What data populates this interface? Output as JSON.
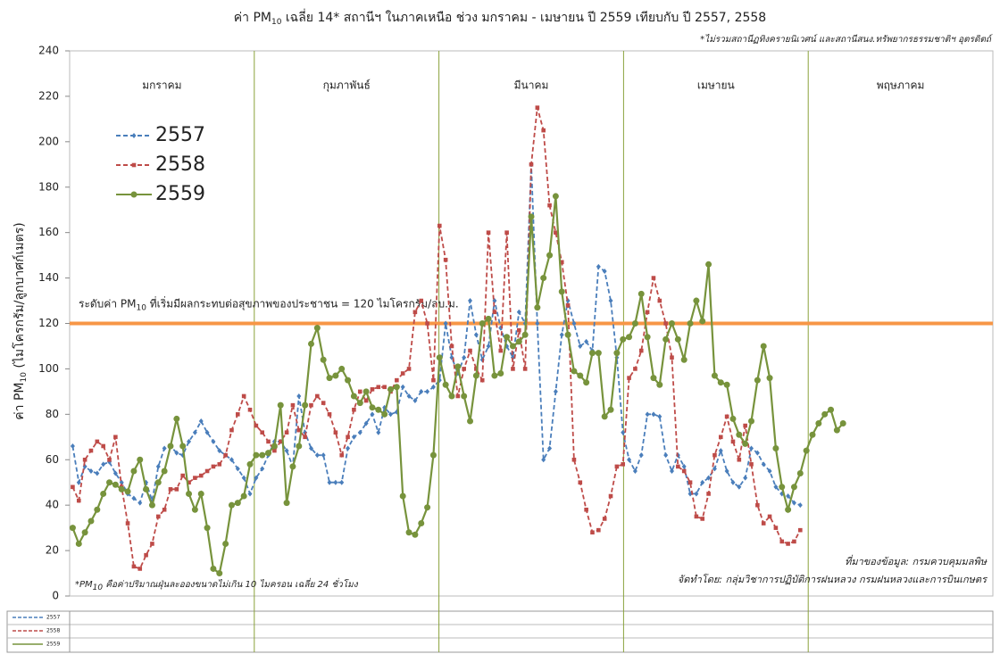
{
  "chart_data": {
    "type": "line",
    "title": {
      "pre": "ค่า PM",
      "sub": "10",
      "post": " เฉลี่ย 14* สถานีฯ ในภาคเหนือ ช่วง มกราคม - เมษายน ปี 2559 เทียบกับ ปี 2557, 2558"
    },
    "subtitle": "*ไม่รวมสถานีฏทิงครายนิเวศน์ และสถานีสนง.ทรัพยากรธรรมชาติฯ อุตรดิตถ์",
    "y_label": {
      "pre": "ค่า PM",
      "sub": "10",
      "post": " (ไมโครกรัม/ลูกบาศก์เมตร)"
    },
    "months": [
      "มกราคม",
      "กุมภาพันธ์",
      "มีนาคม",
      "เมษายน",
      "พฤษภาคม"
    ],
    "threshold": {
      "value": 120,
      "color": "#f79646",
      "pre": "ระดับค่า PM",
      "sub": "10",
      "post": " ที่เริ่มมีผลกระทบต่อสุขภาพของประชาชน = 120 ไมโครกรัม/ลบ.ม."
    },
    "footnote": {
      "pre": "*PM",
      "sub": "10",
      "post": " คือค่าปริมาณฝุ่นละอองขนาดไม่เกิน 10 ไมครอน เฉลี่ย 24 ชั่วโมง"
    },
    "source": "ที่มาของข้อมูล: กรมควบคุมมลพิษ",
    "credit": "จัดทำโดย: กลุ่มวิชาการปฏิบัติการฝนหลวง กรมฝนหลวงและการบินเกษตร",
    "ylim": [
      0,
      240
    ],
    "yticks": [
      0,
      20,
      40,
      60,
      80,
      100,
      120,
      140,
      160,
      180,
      200,
      220,
      240
    ],
    "categories": [
      null,
      null,
      null,
      null,
      null,
      null,
      null,
      null,
      null,
      null,
      null,
      null,
      null,
      null,
      null,
      null,
      null,
      null,
      null,
      null,
      null,
      null,
      null,
      null,
      null,
      null,
      null,
      null,
      null,
      null,
      null,
      null,
      null,
      null,
      null,
      null,
      null,
      null,
      null,
      null,
      null,
      null,
      null,
      null,
      null,
      null,
      null,
      null,
      null,
      null,
      null,
      null,
      null,
      null,
      null,
      null,
      null,
      null,
      null,
      null,
      null,
      null,
      null,
      null,
      null,
      null,
      null,
      null,
      null,
      null,
      null,
      null,
      null,
      null,
      null,
      null,
      null,
      null,
      null,
      null,
      null,
      null,
      null,
      null,
      null,
      null,
      null,
      null,
      null,
      null,
      null,
      null,
      null,
      null,
      null,
      null,
      null,
      null,
      null,
      null,
      null,
      null,
      null,
      null,
      null,
      null,
      null,
      null,
      null,
      null,
      null,
      null,
      null,
      null,
      null,
      null,
      null,
      null,
      null,
      null,
      null,
      null,
      null,
      null,
      null,
      null,
      null,
      null,
      null,
      null,
      null,
      null,
      null,
      null,
      null,
      null,
      null,
      null,
      null,
      null,
      null,
      null,
      null,
      null,
      null,
      null,
      null,
      null,
      null,
      null,
      null
    ],
    "series": [
      {
        "name": "2557",
        "color": "#4a7ebb",
        "dash": true,
        "marker": "diamond",
        "values": [
          66,
          50,
          57,
          55,
          54,
          58,
          59,
          54,
          50,
          45,
          43,
          41,
          50,
          42,
          57,
          65,
          66,
          63,
          62,
          68,
          72,
          77,
          72,
          68,
          64,
          62,
          60,
          56,
          52,
          45,
          52,
          56,
          62,
          68,
          68,
          64,
          57,
          88,
          72,
          65,
          62,
          62,
          50,
          50,
          50,
          65,
          70,
          72,
          76,
          80,
          72,
          83,
          80,
          81,
          92,
          88,
          86,
          90,
          90,
          92,
          95,
          120,
          105,
          98,
          105,
          130,
          115,
          104,
          110,
          130,
          118,
          110,
          105,
          125,
          120,
          190,
          120,
          60,
          65,
          90,
          115,
          130,
          120,
          110,
          112,
          108,
          145,
          143,
          130,
          105,
          72,
          60,
          55,
          62,
          80,
          80,
          79,
          62,
          55,
          62,
          57,
          45,
          45,
          50,
          52,
          56,
          64,
          55,
          50,
          48,
          52,
          65,
          63,
          58,
          55,
          48,
          45,
          44,
          41,
          40,
          null,
          null,
          null,
          null,
          null,
          null,
          null,
          null,
          null,
          null,
          null,
          null,
          null,
          null,
          null,
          null,
          null,
          null,
          null,
          null,
          null,
          null,
          null,
          null,
          null,
          null,
          null,
          null,
          null,
          null,
          null
        ]
      },
      {
        "name": "2558",
        "color": "#be4b48",
        "dash": true,
        "marker": "square",
        "values": [
          48,
          42,
          60,
          64,
          68,
          66,
          60,
          70,
          48,
          32,
          13,
          12,
          18,
          23,
          35,
          38,
          47,
          47,
          53,
          50,
          52,
          53,
          55,
          57,
          58,
          62,
          73,
          80,
          88,
          82,
          75,
          72,
          68,
          64,
          68,
          72,
          84,
          73,
          70,
          84,
          88,
          85,
          80,
          72,
          62,
          70,
          82,
          90,
          86,
          91,
          92,
          92,
          90,
          95,
          98,
          100,
          125,
          130,
          120,
          95,
          163,
          148,
          110,
          88,
          100,
          108,
          100,
          95,
          160,
          125,
          108,
          160,
          100,
          117,
          100,
          190,
          215,
          205,
          172,
          160,
          147,
          128,
          60,
          50,
          38,
          28,
          29,
          34,
          44,
          57,
          58,
          96,
          100,
          108,
          125,
          140,
          130,
          120,
          105,
          57,
          55,
          50,
          35,
          34,
          45,
          62,
          70,
          79,
          68,
          60,
          75,
          58,
          40,
          32,
          35,
          30,
          24,
          23,
          24,
          29,
          null,
          null,
          null,
          null,
          null,
          null,
          null,
          null,
          null,
          null,
          null,
          null,
          null,
          null,
          null,
          null,
          null,
          null,
          null,
          null,
          null,
          null,
          null,
          null,
          null,
          null,
          null,
          null,
          null,
          null,
          null
        ]
      },
      {
        "name": "2559",
        "color": "#77933c",
        "dash": false,
        "marker": "circle",
        "values": [
          30,
          23,
          28,
          33,
          38,
          45,
          50,
          49,
          47,
          46,
          55,
          60,
          47,
          40,
          50,
          55,
          66,
          78,
          66,
          45,
          38,
          45,
          30,
          12,
          10,
          23,
          40,
          41,
          44,
          58,
          62,
          62,
          63,
          66,
          84,
          41,
          57,
          66,
          84,
          111,
          118,
          104,
          96,
          97,
          100,
          95,
          88,
          85,
          90,
          83,
          82,
          80,
          91,
          92,
          44,
          28,
          27,
          32,
          39,
          62,
          105,
          93,
          88,
          101,
          88,
          77,
          97,
          120,
          122,
          97,
          98,
          114,
          110,
          112,
          115,
          167,
          127,
          140,
          150,
          176,
          134,
          115,
          99,
          97,
          94,
          107,
          107,
          79,
          82,
          107,
          113,
          114,
          120,
          133,
          114,
          96,
          93,
          113,
          120,
          113,
          104,
          120,
          130,
          121,
          146,
          97,
          94,
          93,
          78,
          71,
          67,
          77,
          95,
          110,
          96,
          65,
          48,
          38,
          48,
          54,
          64,
          71,
          76,
          80,
          82,
          73,
          76,
          null,
          null,
          null,
          null,
          null,
          null,
          null,
          null,
          null,
          null,
          null,
          null,
          null,
          null,
          null,
          null,
          null,
          null,
          null,
          null,
          null,
          null,
          null,
          null
        ]
      }
    ]
  }
}
